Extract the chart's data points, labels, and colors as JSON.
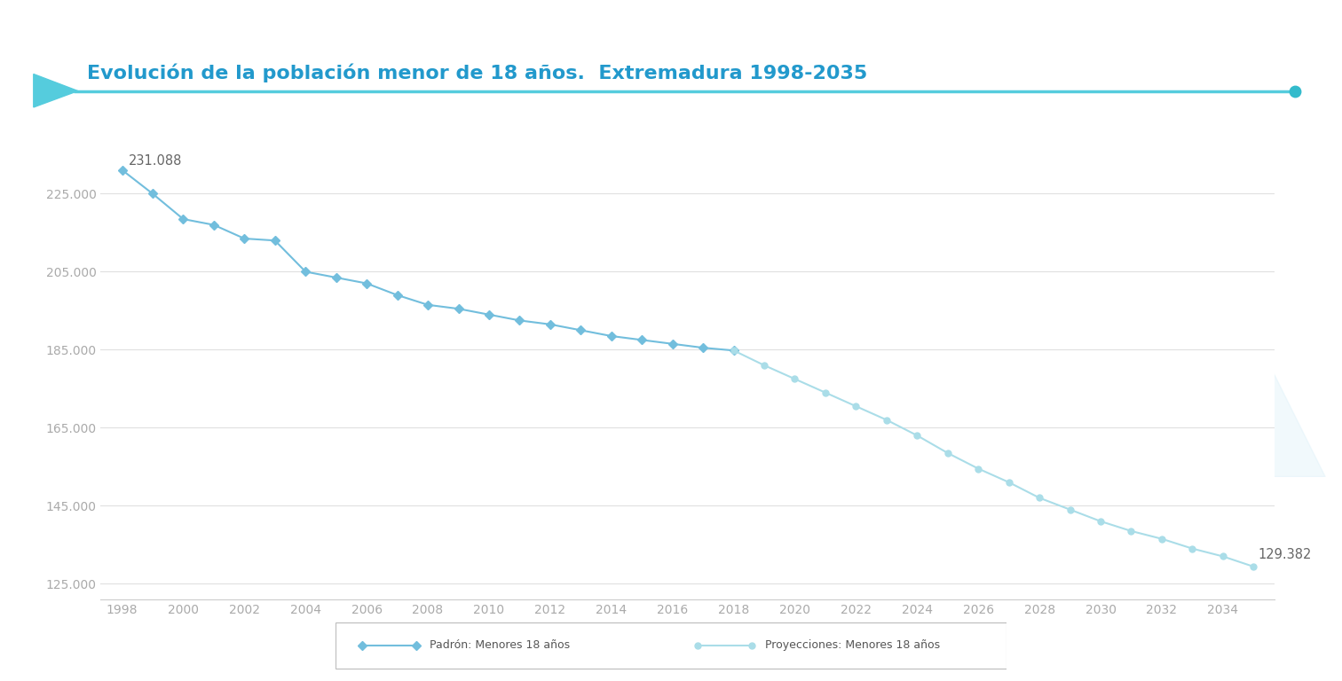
{
  "title": "Evolución de la población menor de 18 años.  Extremadura 1998-2035",
  "padron_years": [
    1998,
    1999,
    2000,
    2001,
    2002,
    2003,
    2004,
    2005,
    2006,
    2007,
    2008,
    2009,
    2010,
    2011,
    2012,
    2013,
    2014,
    2015,
    2016,
    2017,
    2018
  ],
  "padron_values": [
    231088,
    225000,
    218500,
    217000,
    213500,
    213000,
    205000,
    203500,
    202000,
    199000,
    196500,
    195500,
    194000,
    192500,
    191500,
    190000,
    188500,
    187500,
    186500,
    185500,
    184800
  ],
  "proj_years": [
    2018,
    2019,
    2020,
    2021,
    2022,
    2023,
    2024,
    2025,
    2026,
    2027,
    2028,
    2029,
    2030,
    2031,
    2032,
    2033,
    2034,
    2035
  ],
  "proj_values": [
    184800,
    181000,
    177500,
    174000,
    170500,
    167000,
    163000,
    158500,
    154500,
    151000,
    147000,
    144000,
    141000,
    138500,
    136500,
    134000,
    132000,
    129382
  ],
  "label_start": "231.088",
  "label_end": "129.382",
  "ylim_min": 121000,
  "ylim_max": 238000,
  "yticks": [
    125000,
    145000,
    165000,
    185000,
    205000,
    225000
  ],
  "ytick_labels": [
    "125.000",
    "145.000",
    "165.000",
    "185.000",
    "205.000",
    "225.000"
  ],
  "xticks": [
    1998,
    2000,
    2002,
    2004,
    2006,
    2008,
    2010,
    2012,
    2014,
    2016,
    2018,
    2020,
    2022,
    2024,
    2026,
    2028,
    2030,
    2032,
    2034
  ],
  "padron_color": "#72bedd",
  "proj_color": "#aadde8",
  "title_color": "#2299cc",
  "axis_color": "#cccccc",
  "tick_color": "#aaaaaa",
  "bg_color": "#ffffff",
  "legend_padron": "Padrón: Menores 18 años",
  "legend_proj": "Proyecciones: Menores 18 años",
  "header_line_color": "#55ccdd",
  "header_dot_color": "#33bbcc",
  "deco_color": "#d8eff8"
}
